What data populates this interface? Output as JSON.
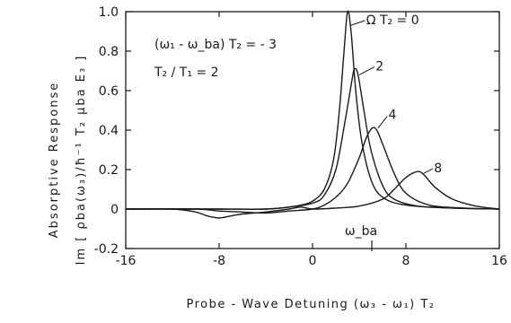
{
  "chart_data": {
    "type": "line",
    "xlabel": "Probe - Wave  Detuning   (ω₃ - ω₁) T₂",
    "ylabel_line1": "Absorptive  Response",
    "ylabel_line2": "Im [ ρba(ω₃)/ħ⁻¹ T₂ μba E₃ ]",
    "xlim": [
      -16,
      16
    ],
    "ylim": [
      -0.2,
      1.0
    ],
    "xticks": [
      -16,
      -8,
      0,
      8,
      16
    ],
    "xtick_labels": [
      "-16",
      "-8",
      "0",
      "8",
      "16"
    ],
    "yticks": [
      -0.2,
      0,
      0.2,
      0.4,
      0.6,
      0.8,
      1.0
    ],
    "ytick_labels": [
      "-0.2",
      "0",
      "0.2",
      "0.4",
      "0.6",
      "0.8",
      "1.0"
    ],
    "grid": false,
    "legend": "none",
    "annotations": {
      "condition1": "(ω₁ - ω_ba) T₂ = - 3",
      "condition2": "T₂ / T₁ = 2",
      "resonance_label": "ω_ba"
    },
    "series": [
      {
        "name": "Ω T₂ = 0",
        "points": [
          [
            -16,
            0.0
          ],
          [
            -12,
            0.0
          ],
          [
            -8,
            0.0
          ],
          [
            -4,
            0.0
          ],
          [
            -2,
            0.01
          ],
          [
            -1,
            0.02
          ],
          [
            0,
            0.04
          ],
          [
            1,
            0.1
          ],
          [
            1.8,
            0.25
          ],
          [
            2.3,
            0.5
          ],
          [
            2.7,
            0.8
          ],
          [
            3.0,
            1.0
          ],
          [
            3.3,
            0.9
          ],
          [
            3.7,
            0.6
          ],
          [
            4.2,
            0.35
          ],
          [
            5,
            0.15
          ],
          [
            6,
            0.06
          ],
          [
            8,
            0.02
          ],
          [
            12,
            0.005
          ],
          [
            16,
            0.0
          ]
        ]
      },
      {
        "name": "2",
        "points": [
          [
            -16,
            0.0
          ],
          [
            -8,
            0.0
          ],
          [
            -4,
            0.0
          ],
          [
            -2,
            0.01
          ],
          [
            0,
            0.03
          ],
          [
            1,
            0.07
          ],
          [
            2,
            0.2
          ],
          [
            2.8,
            0.45
          ],
          [
            3.4,
            0.66
          ],
          [
            3.6,
            0.71
          ],
          [
            3.9,
            0.68
          ],
          [
            4.4,
            0.5
          ],
          [
            5,
            0.3
          ],
          [
            6,
            0.12
          ],
          [
            7,
            0.05
          ],
          [
            9,
            0.015
          ],
          [
            12,
            0.005
          ],
          [
            16,
            0.0
          ]
        ]
      },
      {
        "name": "4",
        "points": [
          [
            -16,
            0.0
          ],
          [
            -10,
            0.0
          ],
          [
            -8,
            -0.01
          ],
          [
            -6,
            -0.015
          ],
          [
            -4,
            -0.02
          ],
          [
            -2,
            -0.01
          ],
          [
            0,
            0.0
          ],
          [
            1,
            0.02
          ],
          [
            2,
            0.06
          ],
          [
            3,
            0.13
          ],
          [
            4,
            0.26
          ],
          [
            4.6,
            0.36
          ],
          [
            5.1,
            0.41
          ],
          [
            5.5,
            0.4
          ],
          [
            6,
            0.33
          ],
          [
            7,
            0.18
          ],
          [
            8,
            0.08
          ],
          [
            10,
            0.02
          ],
          [
            13,
            0.005
          ],
          [
            16,
            0.0
          ]
        ]
      },
      {
        "name": "8",
        "points": [
          [
            -16,
            0.0
          ],
          [
            -12,
            0.0
          ],
          [
            -10,
            -0.015
          ],
          [
            -9,
            -0.035
          ],
          [
            -8,
            -0.045
          ],
          [
            -7,
            -0.035
          ],
          [
            -6,
            -0.025
          ],
          [
            -4,
            -0.015
          ],
          [
            -2,
            0.0
          ],
          [
            -1,
            0.01
          ],
          [
            0,
            0.0
          ],
          [
            2,
            0.005
          ],
          [
            4,
            0.015
          ],
          [
            6,
            0.05
          ],
          [
            7,
            0.1
          ],
          [
            8,
            0.16
          ],
          [
            9,
            0.19
          ],
          [
            9.6,
            0.17
          ],
          [
            10.5,
            0.11
          ],
          [
            12,
            0.05
          ],
          [
            14,
            0.015
          ],
          [
            16,
            0.0
          ]
        ]
      }
    ],
    "series_label_positions": [
      [
        4.6,
        0.96
      ],
      [
        5.4,
        0.725
      ],
      [
        6.5,
        0.48
      ],
      [
        10.4,
        0.21
      ]
    ]
  }
}
